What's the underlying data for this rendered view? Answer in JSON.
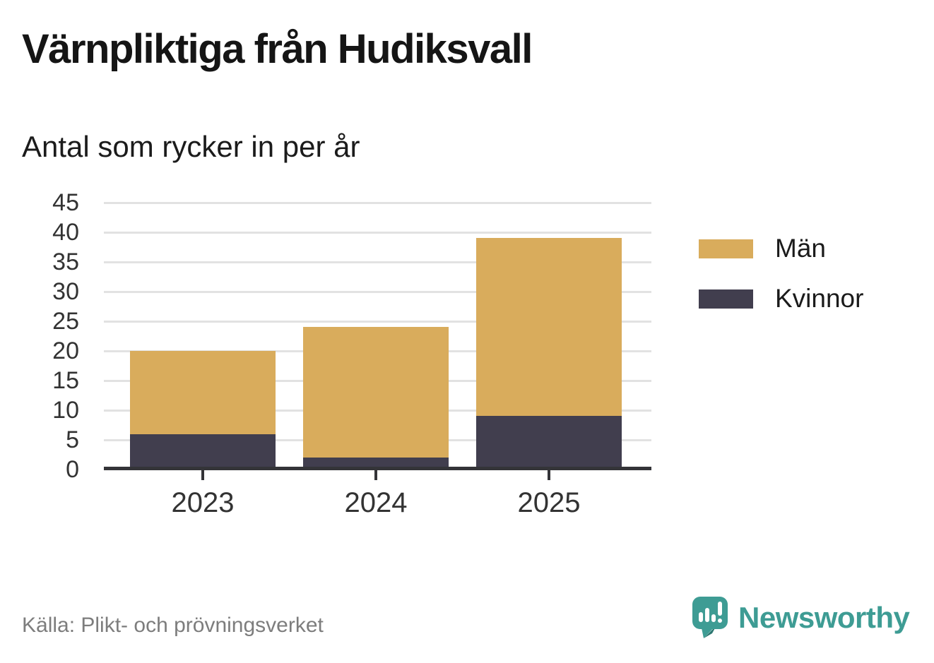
{
  "header": {
    "title": "Värnpliktiga från Hudiksvall",
    "subtitle": "Antal som rycker in per år"
  },
  "chart_data": {
    "type": "bar",
    "stacked": true,
    "title": "Värnpliktiga från Hudiksvall",
    "subtitle": "Antal som rycker in per år",
    "categories": [
      "2023",
      "2024",
      "2025"
    ],
    "series": [
      {
        "name": "Kvinnor",
        "color": "#413e4e",
        "values": [
          6,
          2,
          9
        ]
      },
      {
        "name": "Män",
        "color": "#d9ac5c",
        "values": [
          14,
          22,
          30
        ]
      }
    ],
    "stack_totals": [
      20,
      24,
      39
    ],
    "xlabel": "",
    "ylabel": "",
    "ylim": [
      0,
      45
    ],
    "yticks": [
      0,
      5,
      10,
      15,
      20,
      25,
      30,
      35,
      40,
      45
    ],
    "grid": true,
    "legend_position": "right"
  },
  "legend": {
    "items": [
      {
        "label": "Män",
        "color": "#d9ac5c"
      },
      {
        "label": "Kvinnor",
        "color": "#413e4e"
      }
    ]
  },
  "footer": {
    "source": "Källa: Plikt- och prövningsverket",
    "brand": "Newsworthy"
  },
  "colors": {
    "bar_men": "#d9ac5c",
    "bar_women": "#413e4e",
    "axis": "#343438",
    "gridline": "#e2e2e2",
    "title_text": "#151515",
    "tick_text": "#333333",
    "source_text": "#7d7d7d",
    "brand_teal": "#3e9c94"
  },
  "icons": {
    "brand_icon": "newsworthy-speech-bubble-bar-chart-icon"
  }
}
